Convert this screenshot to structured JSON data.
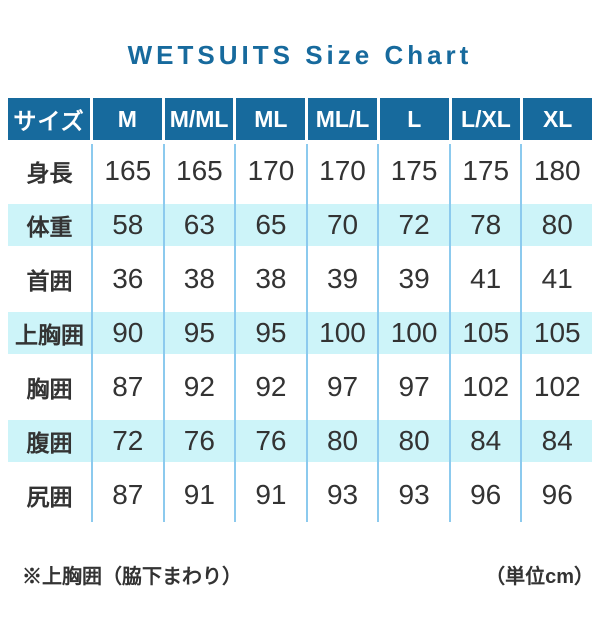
{
  "title": "WETSUITS Size Chart",
  "chart_data": {
    "type": "table",
    "title": "WETSUITS Size Chart",
    "unit": "cm",
    "columns": [
      "サイズ",
      "M",
      "M/ML",
      "ML",
      "ML/L",
      "L",
      "L/XL",
      "XL"
    ],
    "rows": [
      {
        "label": "身長",
        "values": [
          "165",
          "165",
          "170",
          "170",
          "175",
          "175",
          "180"
        ]
      },
      {
        "label": "体重",
        "values": [
          "58",
          "63",
          "65",
          "70",
          "72",
          "78",
          "80"
        ]
      },
      {
        "label": "首囲",
        "values": [
          "36",
          "38",
          "38",
          "39",
          "39",
          "41",
          "41"
        ]
      },
      {
        "label": "上胸囲",
        "values": [
          "90",
          "95",
          "95",
          "100",
          "100",
          "105",
          "105"
        ]
      },
      {
        "label": "胸囲",
        "values": [
          "87",
          "92",
          "92",
          "97",
          "97",
          "102",
          "102"
        ]
      },
      {
        "label": "腹囲",
        "values": [
          "72",
          "76",
          "76",
          "80",
          "80",
          "84",
          "84"
        ]
      },
      {
        "label": "尻囲",
        "values": [
          "87",
          "91",
          "91",
          "93",
          "93",
          "96",
          "96"
        ]
      }
    ]
  },
  "footnotes": {
    "left": "※上胸囲（脇下まわり）",
    "right": "（単位cm）"
  },
  "colors": {
    "accent_blue": "#176a9d",
    "row_cyan": "#cdf4f9",
    "grid_line_blue": "#8ccaee",
    "text_dark": "#333333"
  }
}
